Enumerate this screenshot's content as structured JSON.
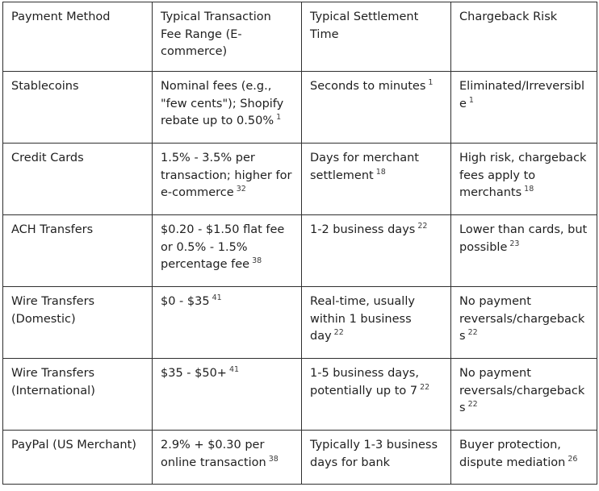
{
  "table": {
    "headers": [
      "Payment Method",
      "Typical Transaction Fee Range (E-commerce)",
      "Typical Settlement Time",
      "Chargeback Risk"
    ],
    "rows": [
      [
        {
          "text": "Stablecoins"
        },
        {
          "text": "Nominal fees (e.g., \"few cents\"); Shopify rebate up to 0.50%",
          "ref": "1"
        },
        {
          "text": "Seconds to minutes",
          "ref": "1"
        },
        {
          "text": "Eliminated/Irreversible",
          "ref": "1"
        }
      ],
      [
        {
          "text": "Credit Cards"
        },
        {
          "text": "1.5% - 3.5% per transaction; higher for e-commerce",
          "ref": "32"
        },
        {
          "text": "Days for merchant settlement",
          "ref": "18"
        },
        {
          "text": "High risk, chargeback fees apply to merchants",
          "ref": "18"
        }
      ],
      [
        {
          "text": "ACH Transfers"
        },
        {
          "text": "$0.20 - $1.50 flat fee or 0.5% - 1.5% percentage fee",
          "ref": "38"
        },
        {
          "text": "1-2 business days",
          "ref": "22"
        },
        {
          "text": "Lower than cards, but possible",
          "ref": "23"
        }
      ],
      [
        {
          "text": "Wire Transfers (Domestic)"
        },
        {
          "text": "$0 - $35",
          "ref": "41"
        },
        {
          "text": "Real-time, usually within 1 business day",
          "ref": "22"
        },
        {
          "text": "No payment reversals/chargebacks",
          "ref": "22"
        }
      ],
      [
        {
          "text": "Wire Transfers (International)"
        },
        {
          "text": "$35 - $50+",
          "ref": "41"
        },
        {
          "text": "1-5 business days, potentially up to 7",
          "ref": "22"
        },
        {
          "text": "No payment reversals/chargebacks",
          "ref": "22"
        }
      ],
      [
        {
          "text": "PayPal (US Merchant)"
        },
        {
          "text": "2.9% + $0.30 per online transaction",
          "ref": "38"
        },
        {
          "text": "Typically 1-3 business days for bank"
        },
        {
          "text": "Buyer protection, dispute mediation",
          "ref": "26"
        }
      ]
    ]
  }
}
